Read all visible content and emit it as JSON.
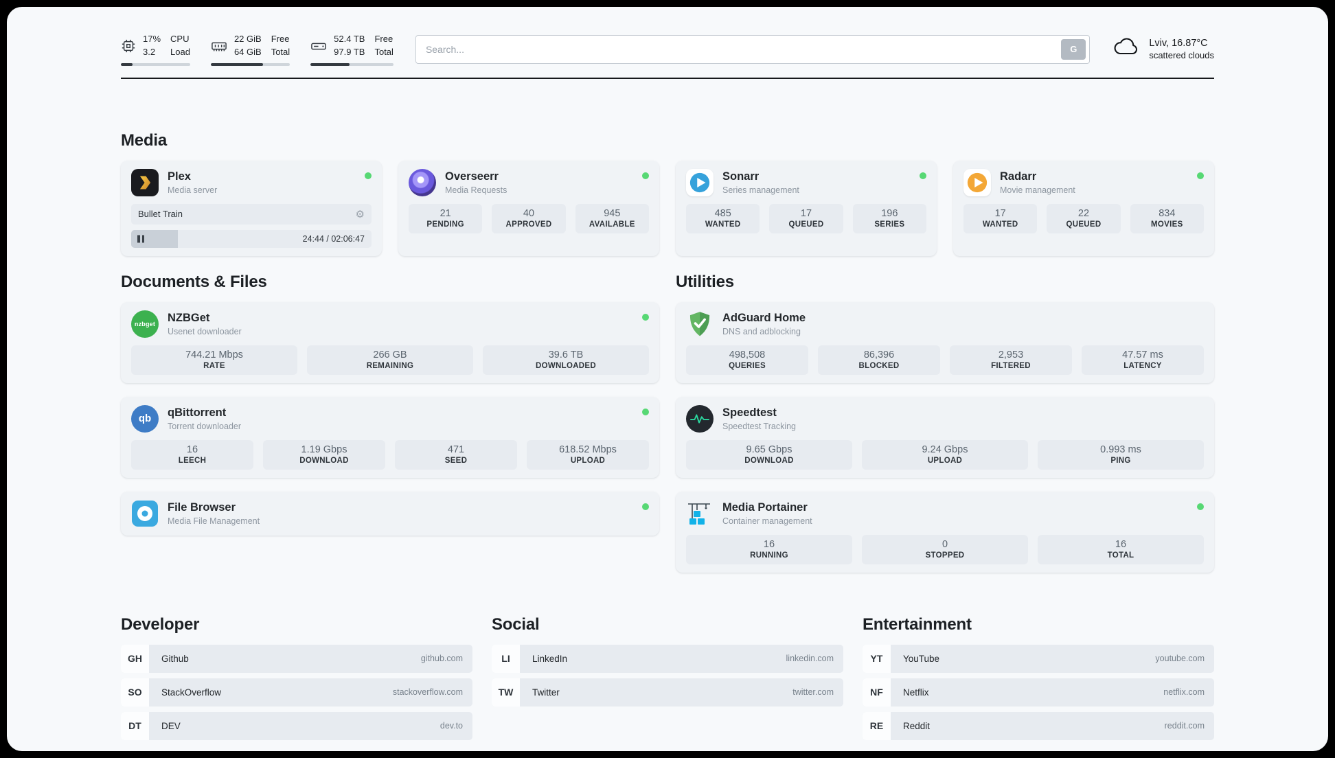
{
  "theme": {
    "status_green": "#57d874",
    "plex_gold": "#e8b12e",
    "overseerr_purple": "#6a59dd",
    "sonarr_blue": "#36a2db",
    "radarr_orange": "#f3a736",
    "nzbget_green": "#3cb14f",
    "qbittorrent_blue": "#3e7cc6",
    "filebrowser_blue": "#3aa9e0",
    "adguard_green": "#5bb05e",
    "speedtest_green": "#2bd9a0",
    "portainer_blue": "#12b2e8"
  },
  "topbar": {
    "cpu": {
      "value_top": "17%",
      "value_bottom": "3.2",
      "label_top": "CPU",
      "label_bottom": "Load",
      "progress_pct": 17
    },
    "memory": {
      "value_top": "22 GiB",
      "value_bottom": "64 GiB",
      "label_top": "Free",
      "label_bottom": "Total",
      "progress_pct": 66
    },
    "disk": {
      "value_top": "52.4 TB",
      "value_bottom": "97.9 TB",
      "label_top": "Free",
      "label_bottom": "Total",
      "progress_pct": 47
    },
    "search": {
      "placeholder": "Search...",
      "button_label": "G"
    },
    "weather": {
      "location_temp": "Lviv, 16.87°C",
      "condition": "scattered clouds"
    }
  },
  "sections": {
    "media": {
      "title": "Media",
      "cards": [
        {
          "title": "Plex",
          "subtitle": "Media server",
          "now_playing": {
            "track": "Bullet Train",
            "time": "24:44 / 02:06:47",
            "progress_pct": 19.5
          }
        },
        {
          "title": "Overseerr",
          "subtitle": "Media Requests",
          "stats": [
            {
              "value": "21",
              "label": "PENDING"
            },
            {
              "value": "40",
              "label": "APPROVED"
            },
            {
              "value": "945",
              "label": "AVAILABLE"
            }
          ]
        },
        {
          "title": "Sonarr",
          "subtitle": "Series management",
          "stats": [
            {
              "value": "485",
              "label": "WANTED"
            },
            {
              "value": "17",
              "label": "QUEUED"
            },
            {
              "value": "196",
              "label": "SERIES"
            }
          ]
        },
        {
          "title": "Radarr",
          "subtitle": "Movie management",
          "stats": [
            {
              "value": "17",
              "label": "WANTED"
            },
            {
              "value": "22",
              "label": "QUEUED"
            },
            {
              "value": "834",
              "label": "MOVIES"
            }
          ]
        }
      ]
    },
    "documents": {
      "title": "Documents & Files",
      "cards": [
        {
          "title": "NZBGet",
          "subtitle": "Usenet downloader",
          "icon_text": "nzbget",
          "stats": [
            {
              "value": "744.21 Mbps",
              "label": "RATE"
            },
            {
              "value": "266 GB",
              "label": "REMAINING"
            },
            {
              "value": "39.6 TB",
              "label": "DOWNLOADED"
            }
          ]
        },
        {
          "title": "qBittorrent",
          "subtitle": "Torrent downloader",
          "icon_text": "qb",
          "stats": [
            {
              "value": "16",
              "label": "LEECH"
            },
            {
              "value": "1.19 Gbps",
              "label": "DOWNLOAD"
            },
            {
              "value": "471",
              "label": "SEED"
            },
            {
              "value": "618.52 Mbps",
              "label": "UPLOAD"
            }
          ]
        },
        {
          "title": "File Browser",
          "subtitle": "Media File Management",
          "stats": []
        }
      ]
    },
    "utilities": {
      "title": "Utilities",
      "cards": [
        {
          "title": "AdGuard Home",
          "subtitle": "DNS and adblocking",
          "stats": [
            {
              "value": "498,508",
              "label": "QUERIES"
            },
            {
              "value": "86,396",
              "label": "BLOCKED"
            },
            {
              "value": "2,953",
              "label": "FILTERED"
            },
            {
              "value": "47.57 ms",
              "label": "LATENCY"
            }
          ]
        },
        {
          "title": "Speedtest",
          "subtitle": "Speedtest Tracking",
          "stats": [
            {
              "value": "9.65 Gbps",
              "label": "DOWNLOAD"
            },
            {
              "value": "9.24 Gbps",
              "label": "UPLOAD"
            },
            {
              "value": "0.993 ms",
              "label": "PING"
            }
          ]
        },
        {
          "title": "Media Portainer",
          "subtitle": "Container management",
          "stats": [
            {
              "value": "16",
              "label": "RUNNING"
            },
            {
              "value": "0",
              "label": "STOPPED"
            },
            {
              "value": "16",
              "label": "TOTAL"
            }
          ]
        }
      ]
    }
  },
  "bookmarks": {
    "developer": {
      "title": "Developer",
      "items": [
        {
          "abbr": "GH",
          "name": "Github",
          "url": "github.com"
        },
        {
          "abbr": "SO",
          "name": "StackOverflow",
          "url": "stackoverflow.com"
        },
        {
          "abbr": "DT",
          "name": "DEV",
          "url": "dev.to"
        }
      ]
    },
    "social": {
      "title": "Social",
      "items": [
        {
          "abbr": "LI",
          "name": "LinkedIn",
          "url": "linkedin.com"
        },
        {
          "abbr": "TW",
          "name": "Twitter",
          "url": "twitter.com"
        }
      ]
    },
    "entertainment": {
      "title": "Entertainment",
      "items": [
        {
          "abbr": "YT",
          "name": "YouTube",
          "url": "youtube.com"
        },
        {
          "abbr": "NF",
          "name": "Netflix",
          "url": "netflix.com"
        },
        {
          "abbr": "RE",
          "name": "Reddit",
          "url": "reddit.com"
        }
      ]
    }
  },
  "icons": {
    "gear_glyph": "⚙"
  }
}
